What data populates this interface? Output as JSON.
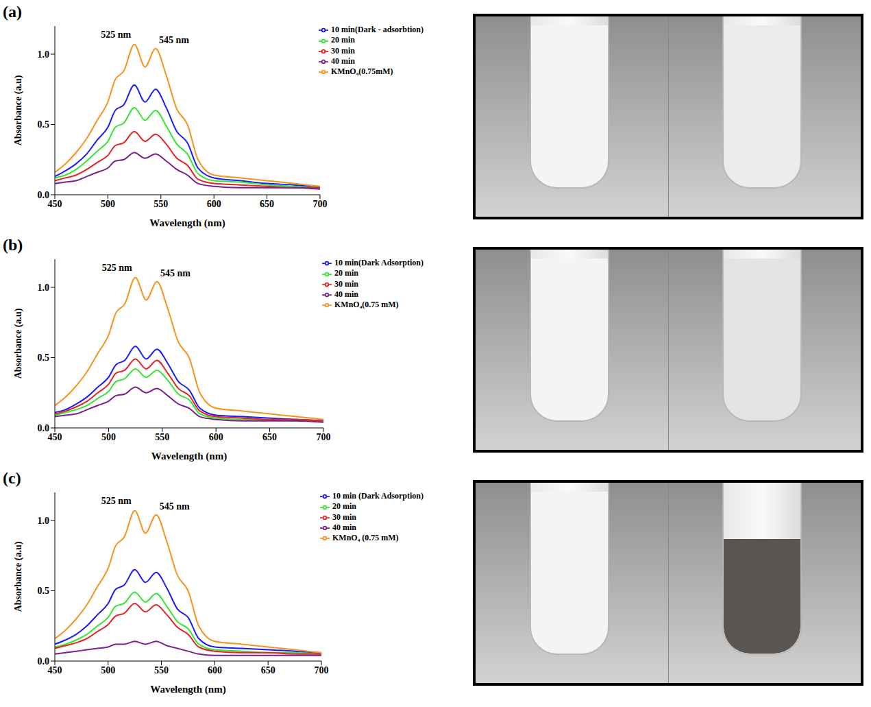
{
  "chart_data": [
    {
      "type": "line",
      "title": "(a)",
      "x_label": "Wavelength (nm)",
      "y_label": "Absorbance (a.u)",
      "x": [
        450,
        460,
        470,
        480,
        490,
        500,
        507,
        515,
        525,
        535,
        545,
        555,
        565,
        575,
        585,
        600,
        625,
        650,
        675,
        700
      ],
      "series": [
        {
          "name": "KMnO₄(0.75mM)",
          "color": "#f7931e",
          "values": [
            0.16,
            0.22,
            0.3,
            0.4,
            0.53,
            0.66,
            0.82,
            0.88,
            1.07,
            0.91,
            1.04,
            0.85,
            0.61,
            0.5,
            0.25,
            0.14,
            0.12,
            0.1,
            0.08,
            0.06
          ]
        },
        {
          "name": "10 min(Dark - adsorbtion)",
          "color": "#1a1aff",
          "values": [
            0.13,
            0.17,
            0.22,
            0.29,
            0.39,
            0.48,
            0.6,
            0.64,
            0.78,
            0.66,
            0.75,
            0.62,
            0.45,
            0.37,
            0.19,
            0.12,
            0.1,
            0.08,
            0.07,
            0.05
          ]
        },
        {
          "name": "20 min",
          "color": "#33e633",
          "values": [
            0.12,
            0.14,
            0.18,
            0.24,
            0.31,
            0.38,
            0.48,
            0.51,
            0.62,
            0.53,
            0.6,
            0.49,
            0.36,
            0.29,
            0.15,
            0.1,
            0.09,
            0.07,
            0.06,
            0.05
          ]
        },
        {
          "name": "30 min",
          "color": "#e62222",
          "values": [
            0.1,
            0.12,
            0.14,
            0.18,
            0.23,
            0.28,
            0.35,
            0.37,
            0.45,
            0.38,
            0.43,
            0.36,
            0.26,
            0.21,
            0.11,
            0.08,
            0.07,
            0.06,
            0.05,
            0.05
          ]
        },
        {
          "name": "40 min",
          "color": "#7a1f8f",
          "values": [
            0.08,
            0.09,
            0.1,
            0.13,
            0.16,
            0.19,
            0.24,
            0.25,
            0.3,
            0.26,
            0.29,
            0.24,
            0.18,
            0.14,
            0.08,
            0.06,
            0.05,
            0.05,
            0.05,
            0.04
          ]
        }
      ],
      "annotations": [
        {
          "text": "525 nm",
          "x": 525,
          "y": 1.14
        },
        {
          "text": "545 nm",
          "x": 545,
          "y": 1.1
        }
      ],
      "xlim": [
        450,
        700
      ],
      "xticks": [
        450,
        500,
        550,
        600,
        650,
        700
      ],
      "ylim": [
        0,
        1.2
      ],
      "yticks": [
        {
          "value": 0,
          "label": "0.0"
        },
        {
          "value": 0.5,
          "label": "0.5"
        },
        {
          "value": 1,
          "label": "1.0"
        }
      ],
      "legend": "upper right",
      "grid": false
    },
    {
      "type": "line",
      "title": "(b)",
      "x_label": "Wavelength (nm)",
      "y_label": "Absorbance (a.u)",
      "x": [
        450,
        460,
        470,
        480,
        490,
        500,
        507,
        515,
        525,
        535,
        545,
        555,
        565,
        575,
        585,
        600,
        625,
        650,
        675,
        700
      ],
      "series": [
        {
          "name": "KMnO₄(0.75 mM)",
          "color": "#f7931e",
          "values": [
            0.16,
            0.22,
            0.3,
            0.4,
            0.53,
            0.66,
            0.82,
            0.88,
            1.07,
            0.91,
            1.04,
            0.85,
            0.61,
            0.5,
            0.25,
            0.14,
            0.12,
            0.1,
            0.08,
            0.06
          ]
        },
        {
          "name": "10 min(Dark Adsorption)",
          "color": "#1a1aff",
          "values": [
            0.11,
            0.13,
            0.17,
            0.22,
            0.29,
            0.36,
            0.45,
            0.48,
            0.58,
            0.49,
            0.56,
            0.46,
            0.33,
            0.27,
            0.14,
            0.09,
            0.08,
            0.07,
            0.06,
            0.05
          ]
        },
        {
          "name": "20 min",
          "color": "#33e633",
          "values": [
            0.09,
            0.11,
            0.13,
            0.16,
            0.21,
            0.26,
            0.33,
            0.35,
            0.42,
            0.36,
            0.41,
            0.34,
            0.24,
            0.2,
            0.1,
            0.07,
            0.06,
            0.06,
            0.05,
            0.05
          ]
        },
        {
          "name": "30 min",
          "color": "#e62222",
          "values": [
            0.1,
            0.12,
            0.15,
            0.19,
            0.25,
            0.31,
            0.39,
            0.41,
            0.49,
            0.42,
            0.48,
            0.39,
            0.28,
            0.23,
            0.12,
            0.08,
            0.07,
            0.06,
            0.06,
            0.05
          ]
        },
        {
          "name": "40 min",
          "color": "#7a1f8f",
          "values": [
            0.08,
            0.09,
            0.1,
            0.13,
            0.16,
            0.19,
            0.23,
            0.24,
            0.29,
            0.25,
            0.28,
            0.23,
            0.17,
            0.14,
            0.08,
            0.06,
            0.05,
            0.05,
            0.05,
            0.04
          ]
        }
      ],
      "annotations": [
        {
          "text": "525 nm",
          "x": 525,
          "y": 1.14
        },
        {
          "text": "545 nm",
          "x": 545,
          "y": 1.1
        }
      ],
      "xlim": [
        450,
        700
      ],
      "xticks": [
        450,
        500,
        550,
        600,
        650,
        700
      ],
      "ylim": [
        0,
        1.2
      ],
      "yticks": [
        {
          "value": 0,
          "label": "0.0"
        },
        {
          "value": 0.5,
          "label": "0.5"
        },
        {
          "value": 1,
          "label": "1.0"
        }
      ],
      "legend": "upper right",
      "grid": false
    },
    {
      "type": "line",
      "title": "(c)",
      "x_label": "Wavelength (nm)",
      "y_label": "Absorbance (a.u)",
      "x": [
        450,
        460,
        470,
        480,
        490,
        500,
        507,
        515,
        525,
        535,
        545,
        555,
        565,
        575,
        585,
        600,
        625,
        650,
        675,
        700
      ],
      "series": [
        {
          "name": "KMnO₄ (0.75 mM)",
          "color": "#f7931e",
          "values": [
            0.16,
            0.22,
            0.3,
            0.4,
            0.53,
            0.66,
            0.82,
            0.88,
            1.07,
            0.91,
            1.04,
            0.85,
            0.61,
            0.5,
            0.25,
            0.14,
            0.12,
            0.1,
            0.08,
            0.06
          ]
        },
        {
          "name": "10 min (Dark Adsorption)",
          "color": "#1a1aff",
          "values": [
            0.12,
            0.15,
            0.19,
            0.25,
            0.33,
            0.41,
            0.51,
            0.54,
            0.65,
            0.56,
            0.63,
            0.52,
            0.37,
            0.31,
            0.16,
            0.1,
            0.09,
            0.08,
            0.07,
            0.05
          ]
        },
        {
          "name": "20 min",
          "color": "#33e633",
          "values": [
            0.1,
            0.12,
            0.15,
            0.19,
            0.25,
            0.31,
            0.39,
            0.41,
            0.49,
            0.42,
            0.48,
            0.39,
            0.28,
            0.23,
            0.12,
            0.08,
            0.07,
            0.06,
            0.06,
            0.05
          ]
        },
        {
          "name": "30 min",
          "color": "#e62222",
          "values": [
            0.09,
            0.11,
            0.13,
            0.16,
            0.21,
            0.26,
            0.32,
            0.34,
            0.41,
            0.35,
            0.4,
            0.33,
            0.24,
            0.19,
            0.1,
            0.07,
            0.06,
            0.06,
            0.05,
            0.05
          ]
        },
        {
          "name": "40 min",
          "color": "#7a1f8f",
          "values": [
            0.05,
            0.06,
            0.07,
            0.08,
            0.09,
            0.1,
            0.12,
            0.12,
            0.14,
            0.12,
            0.14,
            0.11,
            0.09,
            0.07,
            0.05,
            0.04,
            0.04,
            0.04,
            0.04,
            0.04
          ]
        }
      ],
      "annotations": [
        {
          "text": "525 nm",
          "x": 525,
          "y": 1.14
        },
        {
          "text": "545 nm",
          "x": 545,
          "y": 1.1
        }
      ],
      "xlim": [
        450,
        700
      ],
      "xticks": [
        450,
        500,
        550,
        600,
        650,
        700
      ],
      "ylim": [
        0,
        1.2
      ],
      "yticks": [
        {
          "value": 0,
          "label": "0.0"
        },
        {
          "value": 0.5,
          "label": "0.5"
        },
        {
          "value": 1,
          "label": "1.0"
        }
      ],
      "legend": "upper right",
      "grid": false
    }
  ]
}
